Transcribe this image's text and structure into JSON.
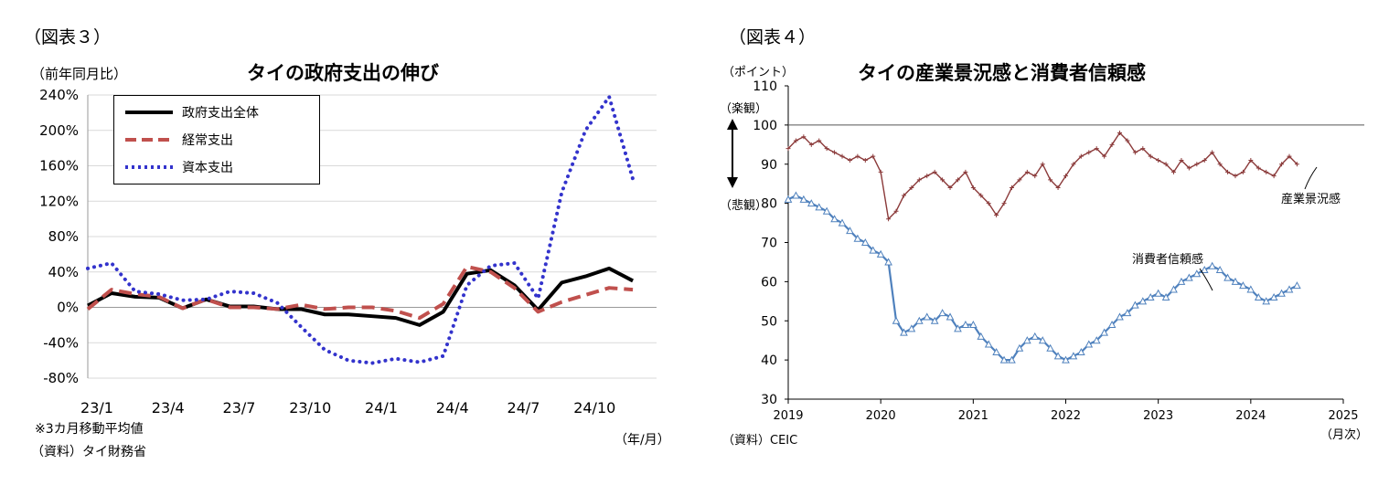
{
  "left": {
    "fig_label": "（図表３）",
    "title": "タイの政府支出の伸び",
    "ylabel": "（前年同月比）",
    "xunit": "（年/月）",
    "note1": "※3カ月移動平均値",
    "source": "（資料）タイ財務省"
  },
  "right": {
    "fig_label": "（図表４）",
    "title": "タイの産業景況感と消費者信頼感",
    "yunit": "（ポイント）",
    "optimistic": "（楽観）",
    "pessimistic": "（悲観）",
    "xunit": "（月次）",
    "source": "（資料）CEIC",
    "arrow_icon": "double-arrow"
  },
  "chart_data": [
    {
      "type": "line",
      "title": "タイの政府支出の伸び",
      "ylabel": "（前年同月比）",
      "xlabel": "（年/月）",
      "ylim": [
        -80,
        240
      ],
      "yticks": [
        "240%",
        "200%",
        "160%",
        "120%",
        "80%",
        "40%",
        "0%",
        "-40%",
        "-80%"
      ],
      "grid": true,
      "legend": "top-left",
      "categories": [
        "23/1",
        "23/2",
        "23/3",
        "23/4",
        "23/5",
        "23/6",
        "23/7",
        "23/8",
        "23/9",
        "23/10",
        "23/11",
        "23/12",
        "24/1",
        "24/2",
        "24/3",
        "24/4",
        "24/5",
        "24/6",
        "24/7",
        "24/8",
        "24/9",
        "24/10",
        "24/11",
        "24/12"
      ],
      "tick_labels": [
        "23/1",
        "23/4",
        "23/7",
        "23/10",
        "24/1",
        "24/4",
        "24/7",
        "24/10"
      ],
      "series": [
        {
          "name": "政府支出全体",
          "color": "#000000",
          "style": "solid",
          "values": [
            2,
            16,
            12,
            11,
            -1,
            9,
            1,
            1,
            -2,
            -2,
            -8,
            -8,
            -10,
            -12,
            -20,
            -5,
            38,
            42,
            25,
            -3,
            28,
            35,
            44,
            30
          ]
        },
        {
          "name": "経常支出",
          "color": "#c0504d",
          "style": "dashed",
          "values": [
            -2,
            20,
            15,
            12,
            -1,
            9,
            0,
            0,
            -2,
            3,
            -2,
            0,
            0,
            -4,
            -12,
            4,
            46,
            40,
            22,
            -5,
            6,
            14,
            22,
            20
          ]
        },
        {
          "name": "資本支出",
          "color": "#3333cc",
          "style": "dotted",
          "values": [
            44,
            50,
            18,
            15,
            8,
            9,
            18,
            16,
            5,
            -22,
            -48,
            -60,
            -63,
            -58,
            -62,
            -55,
            25,
            47,
            50,
            10,
            130,
            200,
            238,
            145
          ]
        }
      ]
    },
    {
      "type": "line",
      "title": "タイの産業景況感と消費者信頼感",
      "ylabel": "（ポイント）",
      "xlabel": "（月次）",
      "ylim": [
        30,
        110
      ],
      "yticks": [
        110,
        100,
        90,
        80,
        70,
        60,
        50,
        40,
        30
      ],
      "reference_line": 100,
      "x_start": "2019-01",
      "x_end": "2025-01",
      "x_ticks": [
        "2019",
        "2020",
        "2021",
        "2022",
        "2023",
        "2024",
        "2025"
      ],
      "series": [
        {
          "name": "産業景況感",
          "color": "#8b3a3a",
          "marker": "plus",
          "values": [
            94,
            96,
            97,
            95,
            96,
            94,
            93,
            92,
            91,
            92,
            91,
            92,
            88,
            76,
            78,
            82,
            84,
            86,
            87,
            88,
            86,
            84,
            86,
            88,
            84,
            82,
            80,
            77,
            80,
            84,
            86,
            88,
            87,
            90,
            86,
            84,
            87,
            90,
            92,
            93,
            94,
            92,
            95,
            98,
            96,
            93,
            94,
            92,
            91,
            90,
            88,
            91,
            89,
            90,
            91,
            93,
            90,
            88,
            87,
            88,
            91,
            89,
            88,
            87,
            90,
            92,
            90
          ]
        },
        {
          "name": "消費者信頼感",
          "color": "#4f81bd",
          "marker": "triangle",
          "values": [
            81,
            82,
            81,
            80,
            79,
            78,
            76,
            75,
            73,
            71,
            70,
            68,
            67,
            65,
            50,
            47,
            48,
            50,
            51,
            50,
            52,
            51,
            48,
            49,
            49,
            46,
            44,
            42,
            40,
            40,
            43,
            45,
            46,
            45,
            43,
            41,
            40,
            41,
            42,
            44,
            45,
            47,
            49,
            51,
            52,
            54,
            55,
            56,
            57,
            56,
            58,
            60,
            61,
            62,
            63,
            64,
            63,
            61,
            60,
            59,
            58,
            56,
            55,
            56,
            57,
            58,
            59
          ]
        }
      ],
      "annotations": [
        "産業景況感",
        "消費者信頼感"
      ]
    }
  ]
}
